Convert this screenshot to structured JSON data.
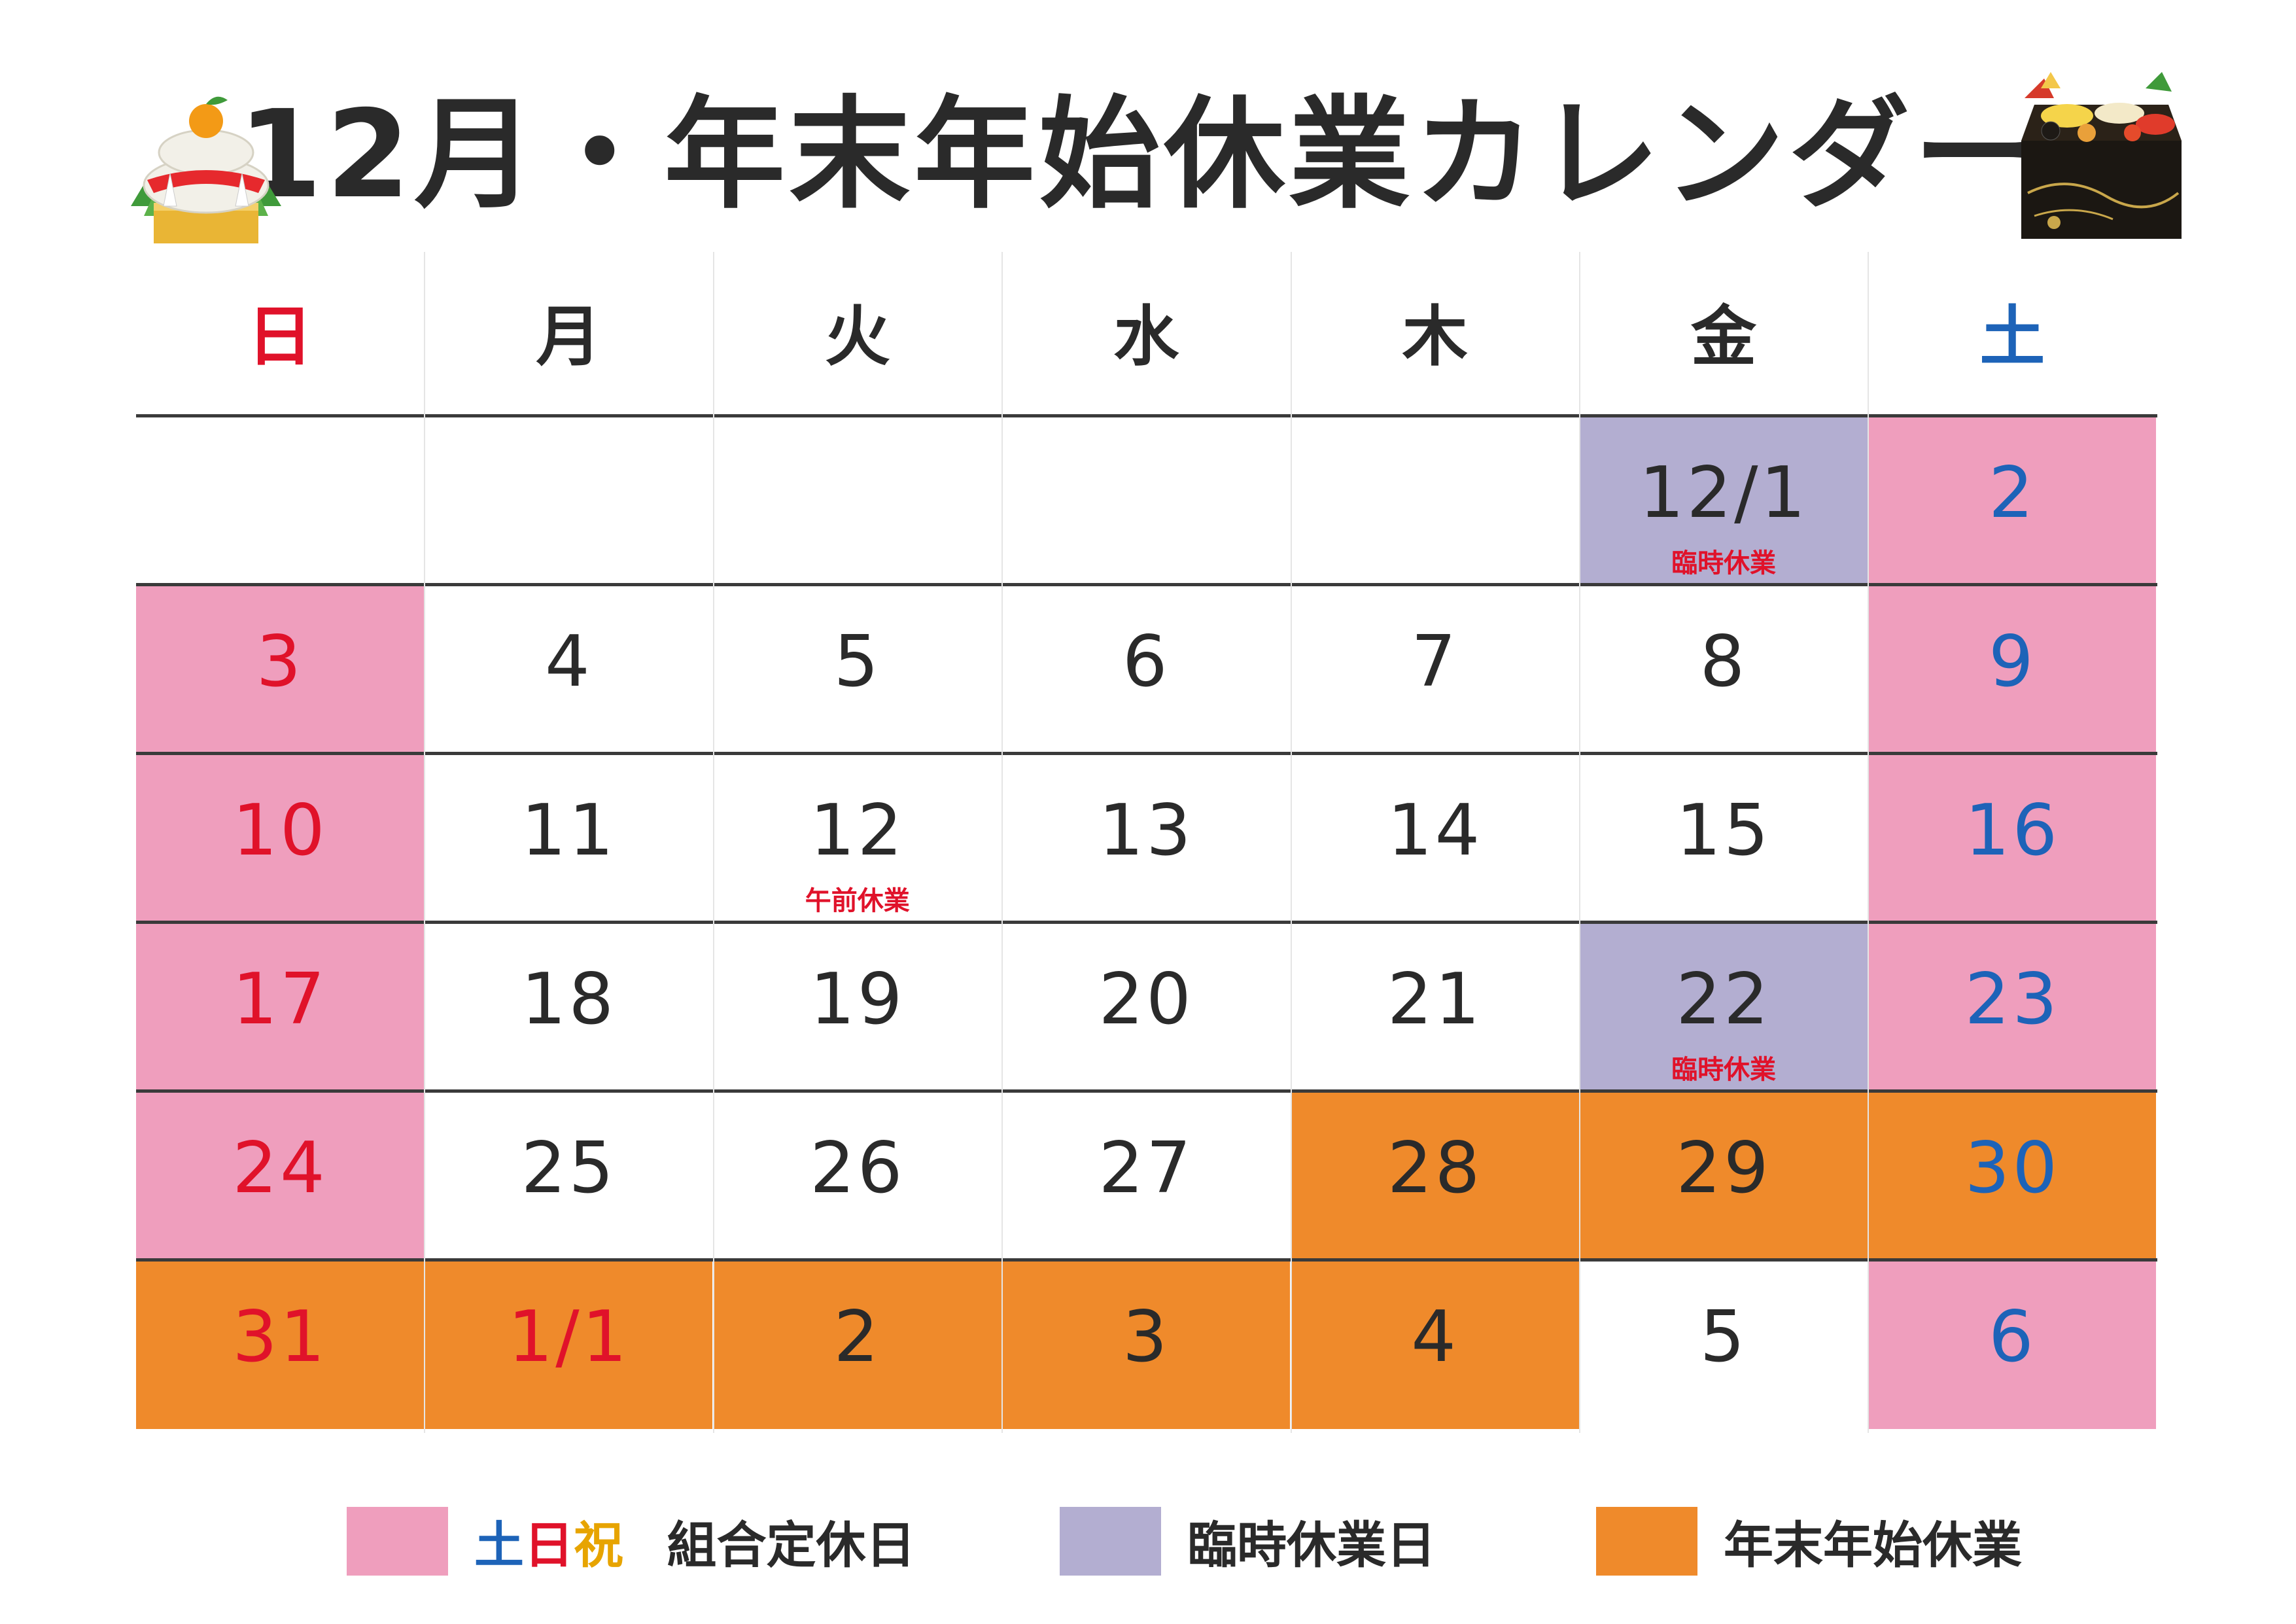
{
  "title": "12月・年末年始休業カレンダー",
  "colors": {
    "weekend": "#ef9ebd",
    "temporary": "#b3aed1",
    "newyear": "#ef8a2b",
    "sunday_text": "#e0122a",
    "saturday_text": "#1d63b8",
    "holiday_yellow": "#e7a400",
    "normal_text": "#2a2a2a",
    "note_text": "#e0122a"
  },
  "weekdays": [
    {
      "label": "日",
      "color": "#e0122a"
    },
    {
      "label": "月",
      "color": "#2a2a2a"
    },
    {
      "label": "火",
      "color": "#2a2a2a"
    },
    {
      "label": "水",
      "color": "#2a2a2a"
    },
    {
      "label": "木",
      "color": "#2a2a2a"
    },
    {
      "label": "金",
      "color": "#2a2a2a"
    },
    {
      "label": "土",
      "color": "#1d63b8"
    }
  ],
  "weeks": [
    [
      {
        "day": "",
        "bg": "",
        "color": ""
      },
      {
        "day": "",
        "bg": "",
        "color": ""
      },
      {
        "day": "",
        "bg": "",
        "color": ""
      },
      {
        "day": "",
        "bg": "",
        "color": ""
      },
      {
        "day": "",
        "bg": "",
        "color": ""
      },
      {
        "day": "12/1",
        "bg": "temporary",
        "color": "normal",
        "note": "臨時休業"
      },
      {
        "day": "2",
        "bg": "weekend",
        "color": "saturday"
      }
    ],
    [
      {
        "day": "3",
        "bg": "weekend",
        "color": "sunday"
      },
      {
        "day": "4",
        "bg": "",
        "color": "normal"
      },
      {
        "day": "5",
        "bg": "",
        "color": "normal"
      },
      {
        "day": "6",
        "bg": "",
        "color": "normal"
      },
      {
        "day": "7",
        "bg": "",
        "color": "normal"
      },
      {
        "day": "8",
        "bg": "",
        "color": "normal"
      },
      {
        "day": "9",
        "bg": "weekend",
        "color": "saturday"
      }
    ],
    [
      {
        "day": "10",
        "bg": "weekend",
        "color": "sunday"
      },
      {
        "day": "11",
        "bg": "",
        "color": "normal"
      },
      {
        "day": "12",
        "bg": "",
        "color": "normal",
        "note": "午前休業"
      },
      {
        "day": "13",
        "bg": "",
        "color": "normal"
      },
      {
        "day": "14",
        "bg": "",
        "color": "normal"
      },
      {
        "day": "15",
        "bg": "",
        "color": "normal"
      },
      {
        "day": "16",
        "bg": "weekend",
        "color": "saturday"
      }
    ],
    [
      {
        "day": "17",
        "bg": "weekend",
        "color": "sunday"
      },
      {
        "day": "18",
        "bg": "",
        "color": "normal"
      },
      {
        "day": "19",
        "bg": "",
        "color": "normal"
      },
      {
        "day": "20",
        "bg": "",
        "color": "normal"
      },
      {
        "day": "21",
        "bg": "",
        "color": "normal"
      },
      {
        "day": "22",
        "bg": "temporary",
        "color": "normal",
        "note": "臨時休業"
      },
      {
        "day": "23",
        "bg": "weekend",
        "color": "saturday"
      }
    ],
    [
      {
        "day": "24",
        "bg": "weekend",
        "color": "sunday"
      },
      {
        "day": "25",
        "bg": "",
        "color": "normal"
      },
      {
        "day": "26",
        "bg": "",
        "color": "normal"
      },
      {
        "day": "27",
        "bg": "",
        "color": "normal"
      },
      {
        "day": "28",
        "bg": "newyear",
        "color": "normal"
      },
      {
        "day": "29",
        "bg": "newyear",
        "color": "normal"
      },
      {
        "day": "30",
        "bg": "newyear",
        "color": "saturday"
      }
    ],
    [
      {
        "day": "31",
        "bg": "newyear",
        "color": "sunday"
      },
      {
        "day": "1/1",
        "bg": "newyear",
        "color": "sunday"
      },
      {
        "day": "2",
        "bg": "newyear",
        "color": "normal"
      },
      {
        "day": "3",
        "bg": "newyear",
        "color": "normal"
      },
      {
        "day": "4",
        "bg": "newyear",
        "color": "normal"
      },
      {
        "day": "5",
        "bg": "",
        "color": "normal"
      },
      {
        "day": "6",
        "bg": "weekend",
        "color": "saturday"
      }
    ]
  ],
  "legend": {
    "weekend_sat": "土",
    "weekend_sun": "日",
    "weekend_hol": "祝",
    "weekend_text": "組合定休日",
    "temporary_text": "臨時休業日",
    "newyear_text": "年末年始休業"
  },
  "illustrations": {
    "left": "kagami-mochi-icon",
    "right": "osechi-box-icon"
  }
}
